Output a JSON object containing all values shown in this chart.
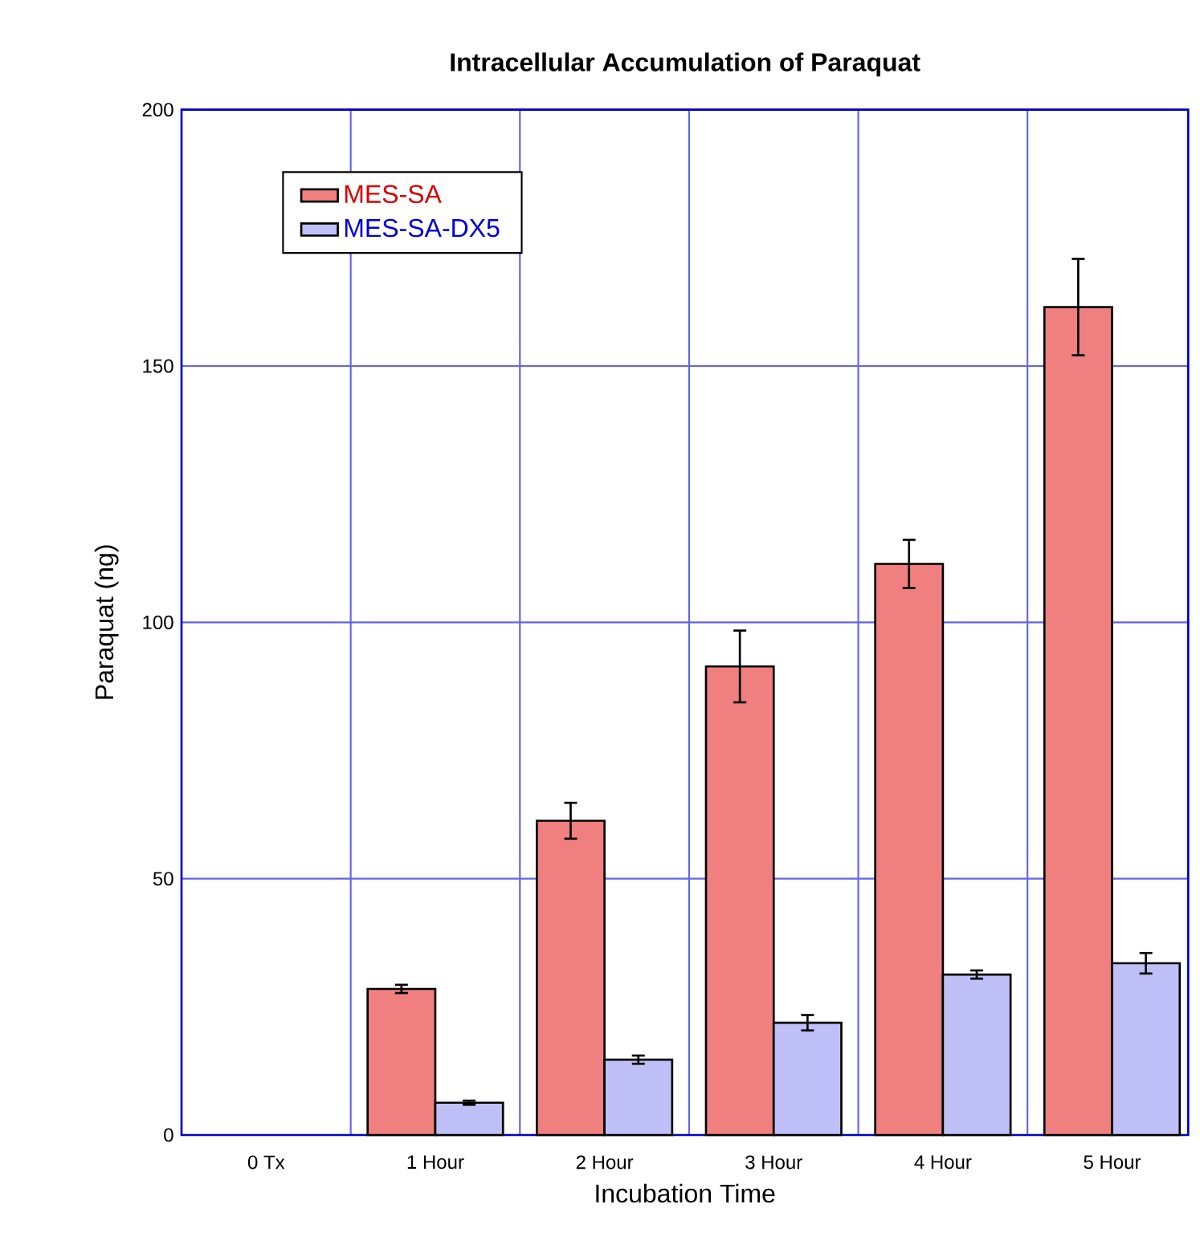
{
  "chart_data": {
    "type": "bar",
    "title": "Intracellular Accumulation of Paraquat",
    "xlabel": "Incubation Time",
    "ylabel": "Paraquat (ng)",
    "categories": [
      "0 Tx",
      "1 Hour",
      "2 Hour",
      "3 Hour",
      "4 Hour",
      "5 Hour"
    ],
    "series": [
      {
        "name": "MES-SA",
        "color": "#f08080",
        "values": [
          null,
          28.5,
          61.3,
          91.4,
          111.4,
          161.5
        ],
        "errors": [
          null,
          0.8,
          3.5,
          7,
          4.7,
          9.4
        ]
      },
      {
        "name": "MES-SA-DX5",
        "color": "#c0c0f8",
        "values": [
          null,
          6.3,
          14.7,
          21.9,
          31.3,
          33.5
        ],
        "errors": [
          null,
          0.4,
          0.8,
          1.5,
          0.8,
          2
        ]
      }
    ],
    "ylim": [
      0,
      200
    ],
    "yticks": [
      0,
      50,
      100,
      150,
      200
    ],
    "grid": true,
    "legend": "top left"
  }
}
